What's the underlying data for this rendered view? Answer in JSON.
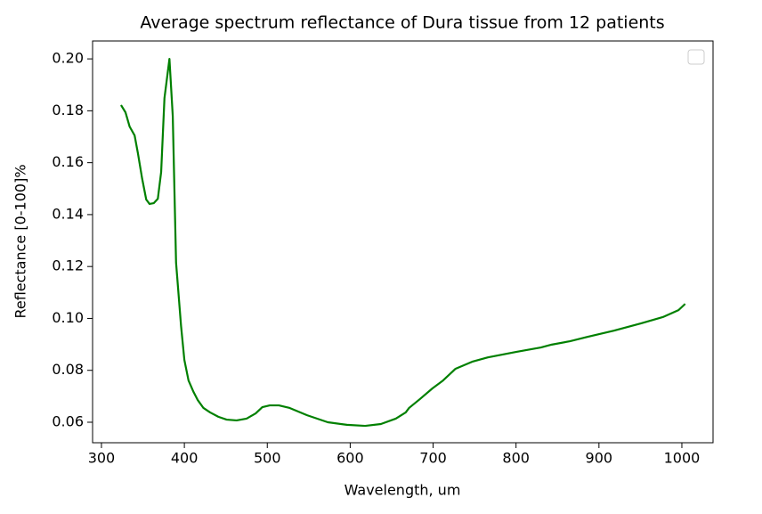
{
  "chart_data": {
    "type": "line",
    "title": "Average spectrum reflectance of Dura tissue from 12 patients",
    "xlabel": "Wavelength, um",
    "ylabel": "Reflectance [0-100]%",
    "color": "#008000",
    "legend": "upper right",
    "grid": false,
    "x": [
      323.6,
      329,
      334,
      340,
      344,
      349,
      354,
      358,
      363,
      368,
      372,
      376,
      382,
      386,
      390,
      396,
      400,
      405,
      411,
      416,
      423,
      431,
      441,
      451,
      463,
      475,
      486,
      494,
      503,
      514,
      527,
      548,
      573,
      596,
      618,
      637,
      655,
      667,
      671,
      684,
      699,
      712,
      727,
      747,
      766,
      800,
      830,
      843,
      865,
      886,
      918,
      951,
      977,
      996,
      1004
    ],
    "values": [
      0.1822,
      0.1794,
      0.1739,
      0.1705,
      0.1636,
      0.154,
      0.1458,
      0.1441,
      0.1444,
      0.1461,
      0.1564,
      0.1849,
      0.2,
      0.178,
      0.1214,
      0.0971,
      0.084,
      0.0761,
      0.0717,
      0.0686,
      0.0655,
      0.0638,
      0.0621,
      0.061,
      0.0607,
      0.0614,
      0.0634,
      0.0658,
      0.0665,
      0.0665,
      0.0655,
      0.0627,
      0.06,
      0.059,
      0.0586,
      0.0593,
      0.0614,
      0.0638,
      0.0655,
      0.0689,
      0.073,
      0.0761,
      0.0806,
      0.0833,
      0.085,
      0.0871,
      0.0888,
      0.0899,
      0.0912,
      0.0929,
      0.0953,
      0.0981,
      0.1005,
      0.1032,
      0.1056
    ],
    "xlim": [
      289.3,
      1037.6
    ],
    "ylim": [
      0.0521,
      0.2069
    ],
    "xticks": [
      300,
      400,
      500,
      600,
      700,
      800,
      900,
      1000
    ],
    "yticks": [
      0.06,
      0.08,
      {
        "value": 0.1,
        "label": "0.10"
      },
      0.12,
      0.14,
      0.16,
      0.18,
      {
        "value": 0.2,
        "label": "0.20"
      }
    ]
  }
}
